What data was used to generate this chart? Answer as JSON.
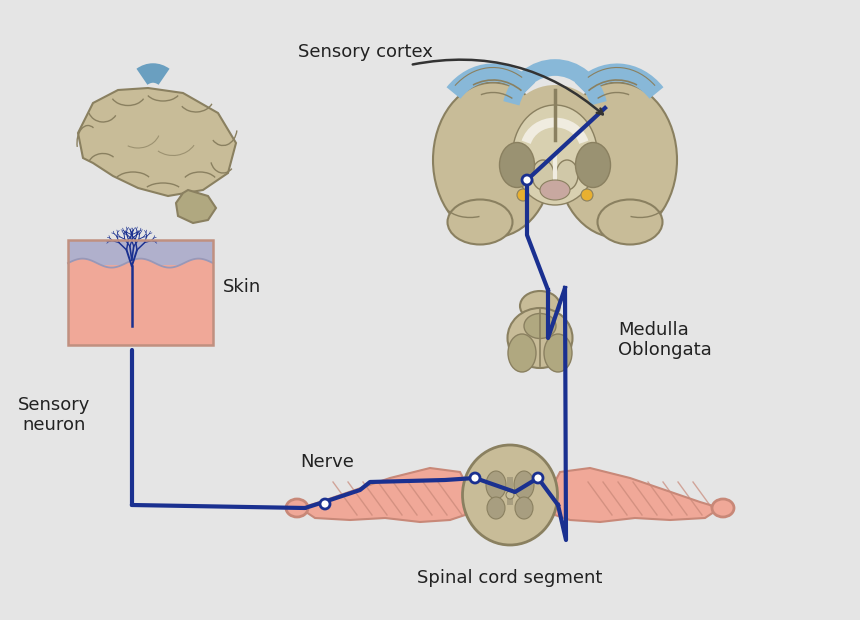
{
  "bg_color": "#e5e5e5",
  "nerve_color": "#1a3090",
  "nerve_lw": 3.0,
  "labels": {
    "sensory_cortex": "Sensory cortex",
    "medulla": "Medulla\nOblongata",
    "skin": "Skin",
    "sensory_neuron": "Sensory\nneuron",
    "nerve": "Nerve",
    "spinal_cord": "Spinal cord segment"
  },
  "colors": {
    "brain_main": "#c8bc98",
    "brain_mid": "#b0a880",
    "brain_dark": "#8a8060",
    "brain_inner": "#d8d0b0",
    "brain_white": "#f0ece0",
    "brain_blue": "#6a9fc0",
    "brain_blue2": "#88b8d8",
    "yellow_dot": "#e8b030",
    "skin_top": "#b0b0cc",
    "skin_bottom": "#f0a898",
    "skin_wave": "#9898b8",
    "muscle_color": "#f0a898",
    "muscle_dark": "#c88878",
    "cord_color": "#c8bc98",
    "cord_dark": "#8a8060",
    "cord_gray": "#a89e80",
    "nerve_axon": "#1a3090",
    "node_fill": "#ffffff",
    "label_color": "#222222",
    "arrow_color": "#333333"
  }
}
